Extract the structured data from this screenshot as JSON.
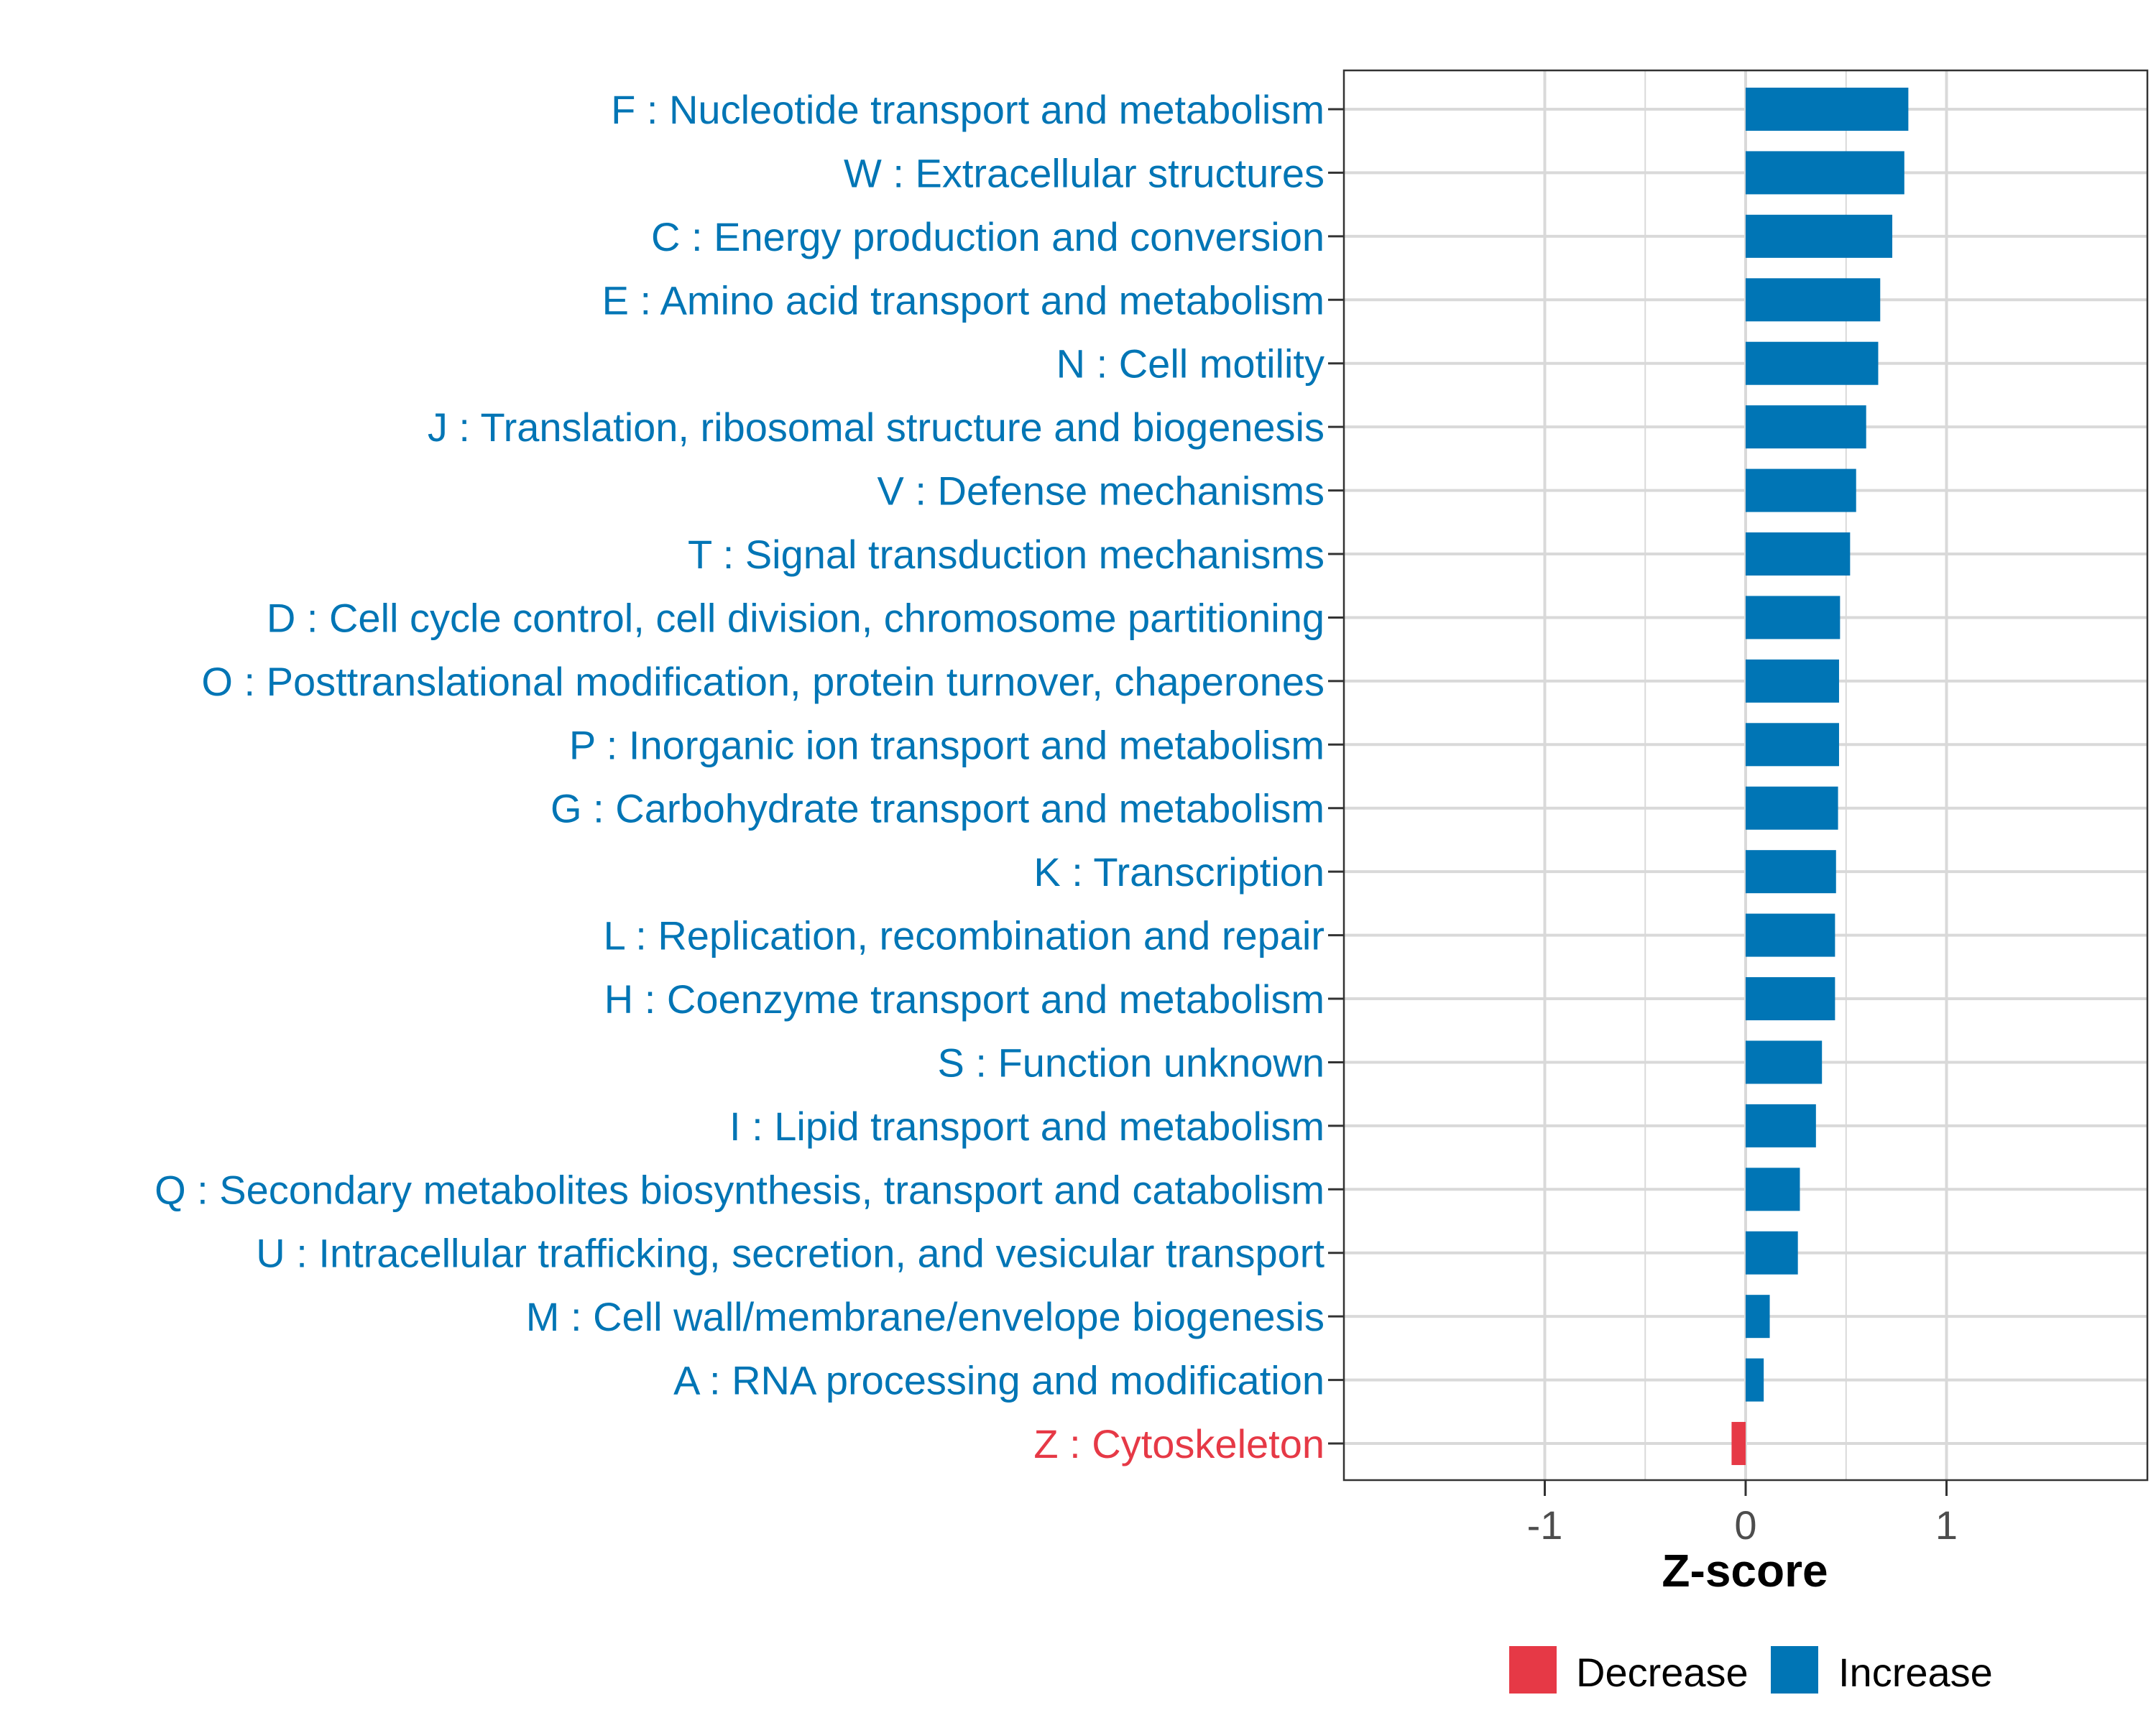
{
  "chart_data": {
    "type": "bar",
    "orientation": "horizontal",
    "xlabel": "Z-score",
    "ylabel": "",
    "xlim": [
      -2,
      2
    ],
    "xticks": [
      -1,
      0,
      1
    ],
    "xtick_labels": [
      "-1",
      "0",
      "1"
    ],
    "grid": true,
    "legend_position": "bottom",
    "colors": {
      "increase": "#0075B5",
      "decrease": "#E63946",
      "grid": "#D9D9D9",
      "axis_text": "#4D4D4D",
      "frame": "#333333"
    },
    "legend": [
      {
        "label": "Decrease",
        "color": "#E63946"
      },
      {
        "label": "Increase",
        "color": "#0075B5"
      }
    ],
    "categories": [
      {
        "label": "F : Nucleotide transport and metabolism",
        "value": 0.81,
        "direction": "Increase"
      },
      {
        "label": "W : Extracellular structures",
        "value": 0.79,
        "direction": "Increase"
      },
      {
        "label": "C : Energy production and conversion",
        "value": 0.73,
        "direction": "Increase"
      },
      {
        "label": "E : Amino acid transport and metabolism",
        "value": 0.67,
        "direction": "Increase"
      },
      {
        "label": "N : Cell motility",
        "value": 0.66,
        "direction": "Increase"
      },
      {
        "label": "J : Translation, ribosomal structure and biogenesis",
        "value": 0.6,
        "direction": "Increase"
      },
      {
        "label": "V : Defense mechanisms",
        "value": 0.55,
        "direction": "Increase"
      },
      {
        "label": "T : Signal transduction mechanisms",
        "value": 0.52,
        "direction": "Increase"
      },
      {
        "label": "D : Cell cycle control, cell division, chromosome partitioning",
        "value": 0.47,
        "direction": "Increase"
      },
      {
        "label": "O : Posttranslational modification, protein turnover, chaperones",
        "value": 0.465,
        "direction": "Increase"
      },
      {
        "label": "P : Inorganic ion transport and metabolism",
        "value": 0.465,
        "direction": "Increase"
      },
      {
        "label": "G : Carbohydrate transport and metabolism",
        "value": 0.46,
        "direction": "Increase"
      },
      {
        "label": "K : Transcription",
        "value": 0.45,
        "direction": "Increase"
      },
      {
        "label": "L : Replication, recombination and repair",
        "value": 0.445,
        "direction": "Increase"
      },
      {
        "label": "H : Coenzyme transport and metabolism",
        "value": 0.445,
        "direction": "Increase"
      },
      {
        "label": "S : Function unknown",
        "value": 0.38,
        "direction": "Increase"
      },
      {
        "label": "I : Lipid transport and metabolism",
        "value": 0.35,
        "direction": "Increase"
      },
      {
        "label": "Q : Secondary metabolites biosynthesis, transport and catabolism",
        "value": 0.27,
        "direction": "Increase"
      },
      {
        "label": "U : Intracellular trafficking, secretion, and vesicular transport",
        "value": 0.26,
        "direction": "Increase"
      },
      {
        "label": "M : Cell wall/membrane/envelope biogenesis",
        "value": 0.12,
        "direction": "Increase"
      },
      {
        "label": "A : RNA processing and modification",
        "value": 0.09,
        "direction": "Increase"
      },
      {
        "label": "Z : Cytoskeleton",
        "value": -0.07,
        "direction": "Decrease"
      }
    ]
  }
}
